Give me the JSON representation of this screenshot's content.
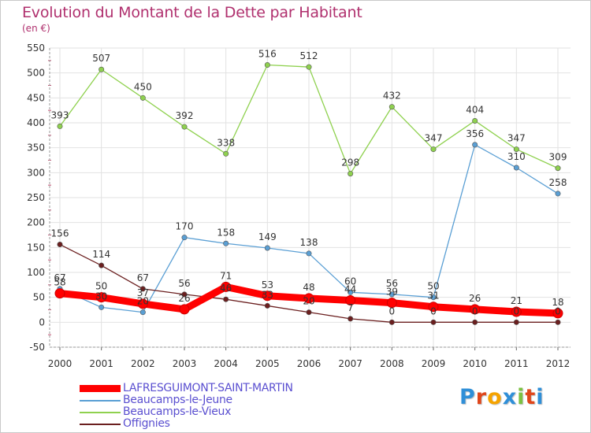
{
  "title": "Evolution du Montant de la Dette par Habitant",
  "unit": "(en €)",
  "logo": {
    "letters": [
      "P",
      "r",
      "o",
      "x",
      "i",
      "t",
      "i"
    ],
    "colors": [
      "#2f8fd8",
      "#e0461b",
      "#f5a300",
      "#2f8fd8",
      "#7cc142",
      "#e0461b",
      "#2f8fd8"
    ]
  },
  "chart_data": {
    "type": "line",
    "title": "Evolution du Montant de la Dette par Habitant",
    "ylabel": "(en €)",
    "xlabel": "",
    "x": [
      "2000",
      "2001",
      "2002",
      "2003",
      "2004",
      "2005",
      "2006",
      "2007",
      "2008",
      "2009",
      "2010",
      "2011",
      "2012"
    ],
    "ylim": [
      -50,
      550
    ],
    "yticks": [
      -50,
      0,
      50,
      100,
      150,
      200,
      250,
      300,
      350,
      400,
      450,
      500,
      550
    ],
    "grid": true,
    "legend_position": "bottom-left",
    "series": [
      {
        "name": "LAFRESGUIMONT-SAINT-MARTIN",
        "color": "#ff0000",
        "values": [
          58,
          50,
          37,
          26,
          71,
          53,
          48,
          44,
          39,
          31,
          26,
          21,
          18
        ]
      },
      {
        "name": "Beaucamps-le-Jeune",
        "color": "#5a9fd4",
        "values": [
          67,
          30,
          20,
          170,
          158,
          149,
          138,
          60,
          56,
          50,
          356,
          310,
          258
        ]
      },
      {
        "name": "Beaucamps-le-Vieux",
        "color": "#8fd14f",
        "values": [
          393,
          507,
          450,
          392,
          338,
          516,
          512,
          298,
          432,
          347,
          404,
          347,
          309
        ]
      },
      {
        "name": "Offignies",
        "color": "#6b1f1f",
        "values": [
          156,
          114,
          67,
          56,
          46,
          33,
          20,
          7,
          0,
          0,
          0,
          0,
          0
        ]
      }
    ]
  }
}
